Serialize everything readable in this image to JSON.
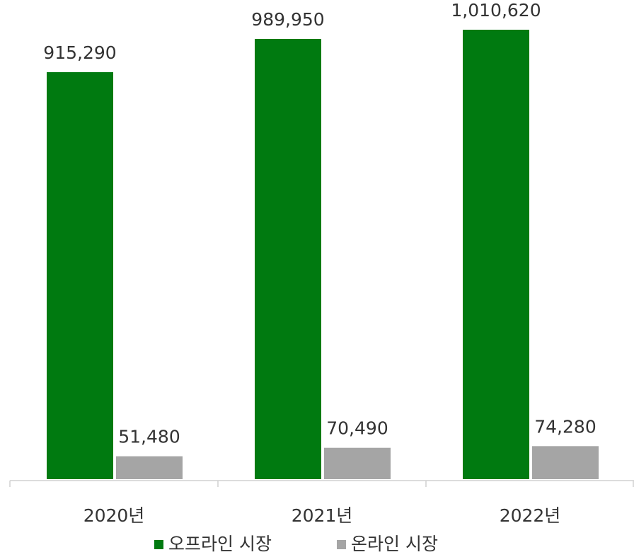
{
  "chart_data": {
    "type": "bar",
    "categories": [
      "2020년",
      "2021년",
      "2022년"
    ],
    "series": [
      {
        "name": "오프라인 시장",
        "color": "#007a10",
        "values": [
          915290,
          989950,
          1010620
        ],
        "value_labels": [
          "915,290",
          "989,950",
          "1,010,620"
        ]
      },
      {
        "name": "온라인 시장",
        "color": "#a5a5a5",
        "values": [
          51480,
          70490,
          74280
        ],
        "value_labels": [
          "51,480",
          "70,490",
          "74,280"
        ]
      }
    ]
  }
}
